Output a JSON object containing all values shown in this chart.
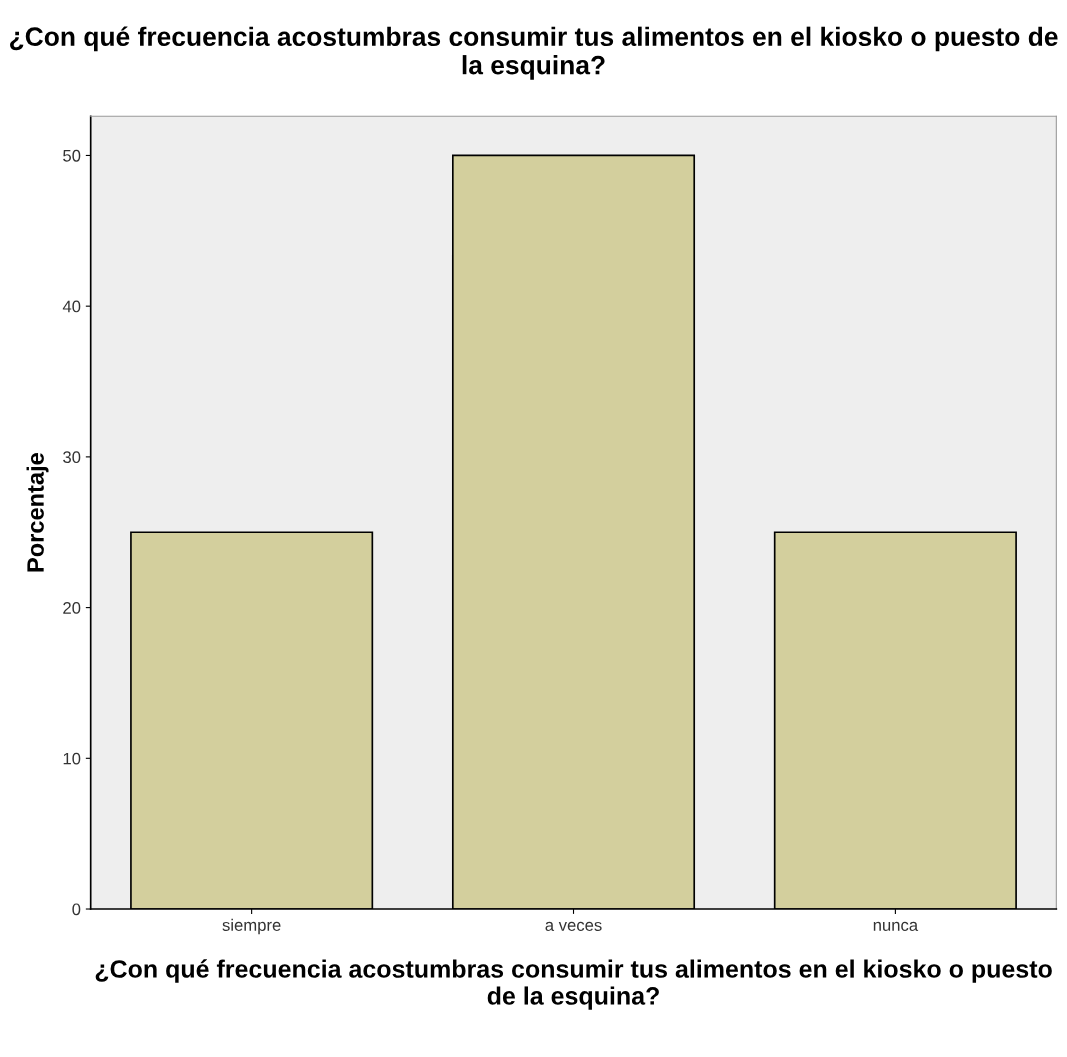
{
  "chart_data": {
    "type": "bar",
    "title": "¿Con qué frecuencia acostumbras consumir tus alimentos en el kiosko o puesto de la esquina?",
    "xlabel": "¿Con qué frecuencia acostumbras consumir tus alimentos en el kiosko o puesto de la esquina?",
    "ylabel": "Porcentaje",
    "categories": [
      "siempre",
      "a veces",
      "nunca"
    ],
    "values": [
      25,
      50,
      25
    ],
    "color": "#d3cf9d",
    "ylim": [
      0,
      52.6
    ],
    "yticks": [
      0,
      10,
      20,
      30,
      40,
      50
    ],
    "grid": false
  }
}
